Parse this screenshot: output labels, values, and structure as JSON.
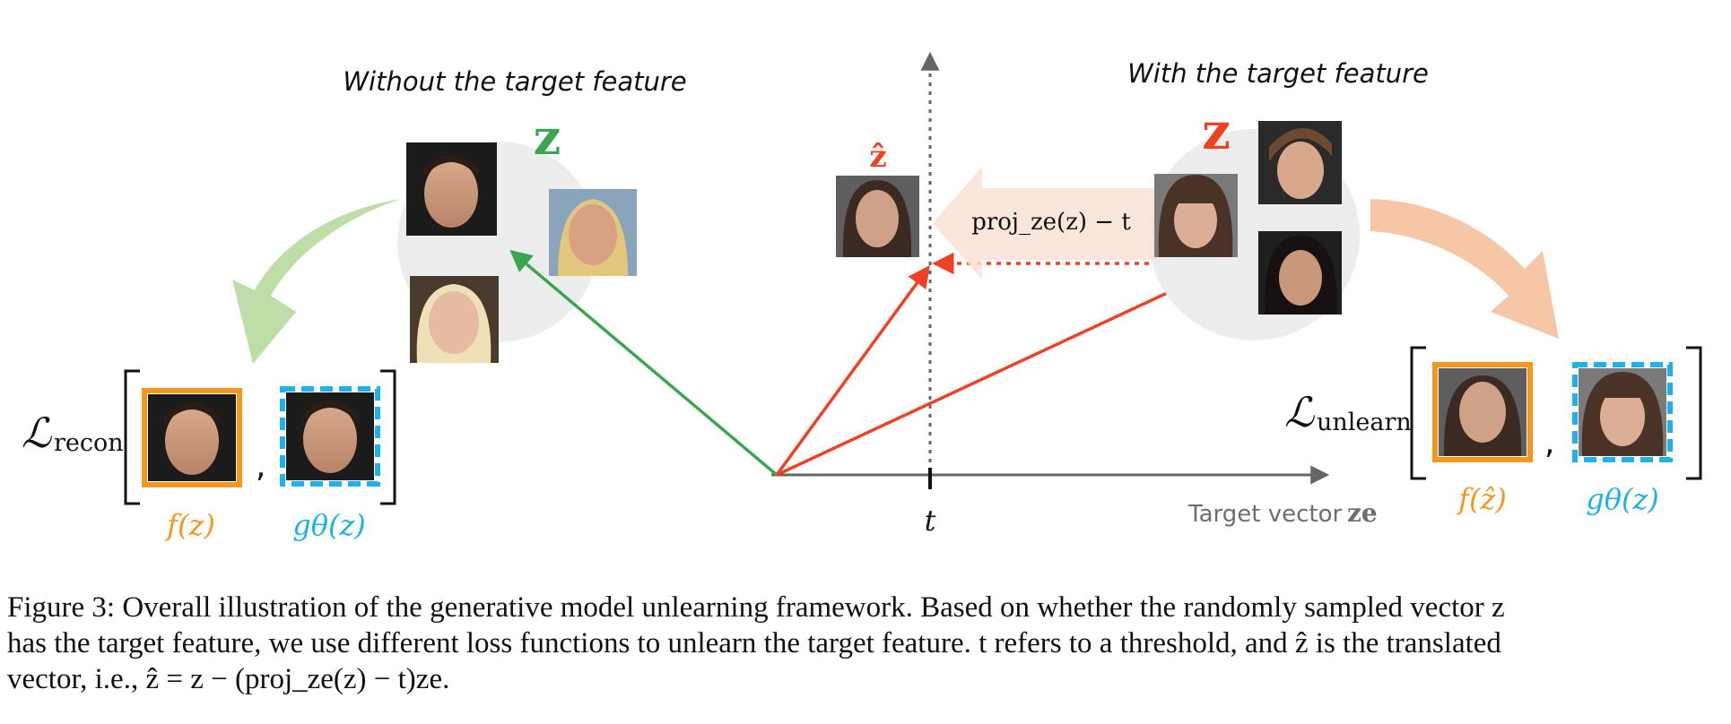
{
  "left_panel": {
    "title": "Without the target feature",
    "cluster_label": "z",
    "loss_label": "ℒ",
    "loss_subscript": "recon",
    "separator": ",",
    "label_f": "f(z)",
    "label_g": "gθ(z)",
    "colors": {
      "arrow": "#b8d99c",
      "vector": "#3aa64f",
      "frame_f": "#f5971e",
      "frame_g": "#1fb1ec"
    }
  },
  "right_panel": {
    "title": "With the target feature",
    "cluster_label": "z",
    "hat_label": "ẑ",
    "proj_label": "proj_ze(z) − t",
    "loss_label": "ℒ",
    "loss_subscript": "unlearn",
    "separator": ",",
    "label_f": "f(ẑ)",
    "label_g": "gθ(z)",
    "colors": {
      "arrow": "#f5c4a2",
      "vector": "#ef4123",
      "frame_f": "#f5971e",
      "frame_g": "#1fb1ec"
    }
  },
  "axes": {
    "threshold_label": "t",
    "x_axis_label": "Target vector",
    "x_axis_symbol": "ze"
  },
  "caption": {
    "line1": "Figure 3: Overall illustration of the generative model unlearning framework. Based on whether the randomly sampled vector z",
    "line2": "has the target feature, we use different loss functions to unlearn the target feature. t refers to a threshold, and ẑ is the translated",
    "line3": "vector, i.e., ẑ = z − (proj_ze(z) − t)ze."
  }
}
